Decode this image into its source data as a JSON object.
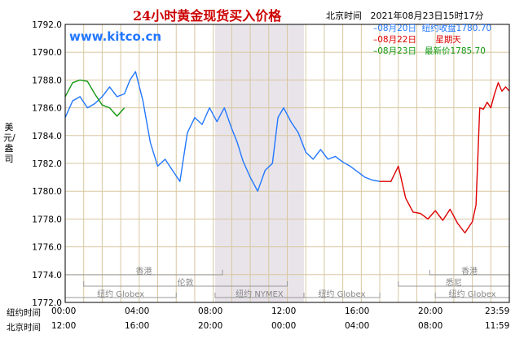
{
  "header": {
    "title": "24小时黄金现货买入价格",
    "city": "北京时间",
    "datetime": "2021年08月23日15时17分",
    "site": "www.kitco.cn"
  },
  "legend": [
    {
      "date": "08月20日",
      "label": "纽约收盘",
      "value": "1780.70",
      "color": "#2277ff"
    },
    {
      "date": "08月22日",
      "label": "星期天",
      "value": "",
      "color": "#dd0000"
    },
    {
      "date": "08月23日",
      "label": "最新价",
      "value": "1785.70",
      "color": "#119911"
    }
  ],
  "unit_label": "美元/盎司",
  "x_axis_rows": [
    {
      "label": "纽约时间",
      "ticks": [
        "00:00",
        "04:00",
        "08:00",
        "12:00",
        "16:00",
        "20:00",
        "23:59"
      ]
    },
    {
      "label": "北京时间",
      "ticks": [
        "12:00",
        "16:00",
        "20:00",
        "00:00",
        "04:00",
        "08:00",
        "11:59"
      ]
    }
  ],
  "markets": [
    {
      "name": "香港",
      "start": 0,
      "end": 8.5,
      "row": 0
    },
    {
      "name": "伦敦",
      "start": 1.0,
      "end": 12.0,
      "row": 1
    },
    {
      "name": "纽约 Globex",
      "start": 0,
      "end": 6.0,
      "row": 2
    },
    {
      "name": "纽约 NYMEX",
      "start": 8.1,
      "end": 12.9,
      "row": 2
    },
    {
      "name": "纽约 Globex",
      "start": 12.9,
      "end": 17.0,
      "row": 2
    },
    {
      "name": "香港",
      "start": 19.7,
      "end": 24,
      "row": 0
    },
    {
      "name": "悉尼",
      "start": 18.0,
      "end": 24,
      "row": 1
    },
    {
      "name": "纽约 Globex",
      "start": 20.0,
      "end": 24,
      "row": 2
    }
  ],
  "chart_data": {
    "type": "line",
    "xlabel": "",
    "ylabel": "美元/盎司",
    "xlim": [
      0,
      24
    ],
    "ylim": [
      1772.0,
      1792.0
    ],
    "y_ticks": [
      1772.0,
      1774.0,
      1776.0,
      1778.0,
      1780.0,
      1782.0,
      1784.0,
      1786.0,
      1788.0,
      1790.0,
      1792.0
    ],
    "x_ticks": [
      0,
      4,
      8,
      12,
      16,
      20,
      24
    ],
    "shaded_region": [
      8.1,
      12.9
    ],
    "series": [
      {
        "name": "08月20日",
        "color": "#2277ff",
        "x": [
          0,
          0.4,
          0.8,
          1.2,
          1.6,
          2.0,
          2.4,
          2.8,
          3.2,
          3.5,
          3.8,
          4.2,
          4.6,
          5.0,
          5.4,
          5.8,
          6.2,
          6.6,
          7.0,
          7.4,
          7.8,
          8.2,
          8.6,
          9.0,
          9.3,
          9.6,
          10.0,
          10.4,
          10.8,
          11.2,
          11.5,
          11.8,
          12.2,
          12.6,
          13.0,
          13.4,
          13.8,
          14.2,
          14.6,
          15.0,
          15.4,
          15.8,
          16.2,
          16.6,
          17.0
        ],
        "values": [
          1785.3,
          1786.5,
          1786.8,
          1786.0,
          1786.3,
          1786.8,
          1787.5,
          1786.8,
          1787.0,
          1788.0,
          1788.6,
          1786.5,
          1783.5,
          1781.8,
          1782.3,
          1781.5,
          1780.7,
          1784.2,
          1785.3,
          1784.8,
          1786.0,
          1785.0,
          1786.0,
          1784.5,
          1783.5,
          1782.2,
          1781.0,
          1780.0,
          1781.5,
          1782.0,
          1785.3,
          1786.0,
          1785.0,
          1784.2,
          1782.8,
          1782.3,
          1783.0,
          1782.3,
          1782.5,
          1782.1,
          1781.8,
          1781.4,
          1781.0,
          1780.8,
          1780.7
        ]
      },
      {
        "name": "08月22日",
        "color": "#dd0000",
        "x": [
          17.0,
          17.6,
          18.0,
          18.4,
          18.8,
          19.2,
          19.6,
          20.0,
          20.4,
          20.8,
          21.2,
          21.6,
          22.0,
          22.2
        ],
        "values": [
          1780.7,
          1780.7,
          1781.8,
          1779.5,
          1778.5,
          1778.4,
          1778.0,
          1778.6,
          1777.9,
          1778.7,
          1777.7,
          1777.0,
          1777.8,
          1779.0
        ]
      },
      {
        "name": "08月23日 红",
        "color": "#dd0000",
        "x": [
          22.2,
          22.4,
          22.6,
          22.8,
          23.0,
          23.2,
          23.4,
          23.6,
          23.8,
          24.0
        ],
        "values": [
          1779.0,
          1786.0,
          1785.9,
          1786.4,
          1786.0,
          1787.0,
          1787.8,
          1787.2,
          1787.5,
          1787.2
        ]
      },
      {
        "name": "08月23日",
        "color": "#119911",
        "x": [
          0,
          0.4,
          0.8,
          1.2,
          1.6,
          2.0,
          2.4,
          2.8,
          3.2
        ],
        "values": [
          1786.8,
          1787.8,
          1788.0,
          1787.9,
          1787.0,
          1786.2,
          1786.0,
          1785.4,
          1786.0
        ]
      }
    ]
  }
}
